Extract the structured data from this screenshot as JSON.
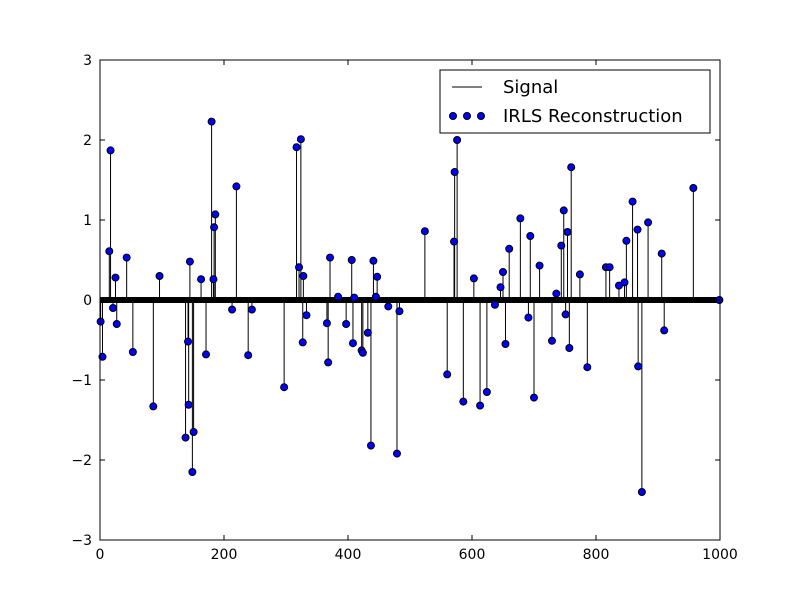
{
  "chart_data": {
    "type": "scatter",
    "title": "",
    "xlabel": "",
    "ylabel": "",
    "xlim": [
      0,
      1000
    ],
    "ylim": [
      -3,
      3
    ],
    "xticks": [
      0,
      200,
      400,
      600,
      800,
      1000
    ],
    "yticks": [
      -3,
      -2,
      -1,
      0,
      1,
      2,
      3
    ],
    "grid": false,
    "legend": {
      "position": "top-right",
      "entries": [
        {
          "label": "Signal",
          "marker": "line",
          "color": "#000000"
        },
        {
          "label": "IRLS Reconstruction",
          "marker": "circle",
          "color": "#0000ff"
        }
      ]
    },
    "series": [
      {
        "name": "Signal",
        "style": "stem",
        "color": "#000000",
        "x": [
          1,
          4,
          15,
          17,
          21,
          25,
          27,
          43,
          53,
          86,
          96,
          138,
          142,
          143,
          145,
          149,
          151,
          163,
          171,
          180,
          183,
          184,
          186,
          213,
          220,
          239,
          245,
          297,
          317,
          321,
          324,
          327,
          328,
          333,
          366,
          368,
          371,
          384,
          397,
          406,
          408,
          410,
          422,
          424,
          432,
          437,
          441,
          445,
          447,
          465,
          479,
          483,
          524,
          560,
          571,
          572,
          576,
          586,
          603,
          613,
          624,
          637,
          646,
          650,
          654,
          660,
          678,
          691,
          694,
          700,
          709,
          729,
          736,
          744,
          748,
          751,
          754,
          757,
          760,
          774,
          786,
          816,
          822,
          837,
          846,
          849,
          859,
          867,
          868,
          874,
          884,
          906,
          910,
          957
        ],
        "y": [
          -0.27,
          -0.71,
          0.61,
          1.87,
          -0.1,
          0.28,
          -0.3,
          0.53,
          -0.65,
          -1.33,
          0.3,
          -1.72,
          -0.52,
          -1.31,
          0.48,
          -2.15,
          -1.65,
          0.26,
          -0.68,
          2.23,
          0.26,
          0.91,
          1.07,
          -0.12,
          1.42,
          -0.69,
          -0.12,
          -1.09,
          1.91,
          0.41,
          2.01,
          -0.53,
          0.3,
          -0.19,
          -0.29,
          -0.78,
          0.53,
          0.04,
          -0.3,
          0.5,
          -0.54,
          0.03,
          -0.63,
          -0.66,
          -0.41,
          -1.82,
          0.49,
          0.04,
          0.29,
          -0.08,
          -1.92,
          -0.14,
          0.86,
          -0.93,
          0.73,
          1.6,
          2.0,
          -1.27,
          0.27,
          -1.32,
          -1.15,
          -0.06,
          0.16,
          0.35,
          -0.55,
          0.64,
          1.02,
          -0.22,
          0.8,
          -1.22,
          0.43,
          -0.51,
          0.08,
          0.68,
          1.12,
          -0.18,
          0.85,
          -0.6,
          1.66,
          0.32,
          -0.84,
          0.41,
          0.41,
          0.18,
          0.22,
          0.74,
          1.23,
          0.88,
          -0.83,
          -2.4,
          0.97,
          0.58,
          -0.38,
          1.4
        ]
      },
      {
        "name": "IRLS Reconstruction",
        "style": "markers",
        "color": "#0000ff",
        "x": [
          1,
          4,
          15,
          17,
          21,
          25,
          27,
          43,
          53,
          86,
          96,
          138,
          142,
          143,
          145,
          149,
          151,
          163,
          171,
          180,
          183,
          184,
          186,
          213,
          220,
          239,
          245,
          297,
          317,
          321,
          324,
          327,
          328,
          333,
          366,
          368,
          371,
          384,
          397,
          406,
          408,
          410,
          422,
          424,
          432,
          437,
          441,
          445,
          447,
          465,
          479,
          483,
          524,
          560,
          571,
          572,
          576,
          586,
          603,
          613,
          624,
          637,
          646,
          650,
          654,
          660,
          678,
          691,
          694,
          700,
          709,
          729,
          736,
          744,
          748,
          751,
          754,
          757,
          760,
          774,
          786,
          816,
          822,
          837,
          846,
          849,
          859,
          867,
          868,
          874,
          884,
          906,
          910,
          957,
          999
        ],
        "y": [
          -0.27,
          -0.71,
          0.61,
          1.87,
          -0.1,
          0.28,
          -0.3,
          0.53,
          -0.65,
          -1.33,
          0.3,
          -1.72,
          -0.52,
          -1.31,
          0.48,
          -2.15,
          -1.65,
          0.26,
          -0.68,
          2.23,
          0.26,
          0.91,
          1.07,
          -0.12,
          1.42,
          -0.69,
          -0.12,
          -1.09,
          1.91,
          0.41,
          2.01,
          -0.53,
          0.3,
          -0.19,
          -0.29,
          -0.78,
          0.53,
          0.04,
          -0.3,
          0.5,
          -0.54,
          0.03,
          -0.63,
          -0.66,
          -0.41,
          -1.82,
          0.49,
          0.04,
          0.29,
          -0.08,
          -1.92,
          -0.14,
          0.86,
          -0.93,
          0.73,
          1.6,
          2.0,
          -1.27,
          0.27,
          -1.32,
          -1.15,
          -0.06,
          0.16,
          0.35,
          -0.55,
          0.64,
          1.02,
          -0.22,
          0.8,
          -1.22,
          0.43,
          -0.51,
          0.08,
          0.68,
          1.12,
          -0.18,
          0.85,
          -0.6,
          1.66,
          0.32,
          -0.84,
          0.41,
          0.41,
          0.18,
          0.22,
          0.74,
          1.23,
          0.88,
          -0.83,
          -2.4,
          0.97,
          0.58,
          -0.38,
          1.4,
          0.0
        ]
      }
    ]
  }
}
